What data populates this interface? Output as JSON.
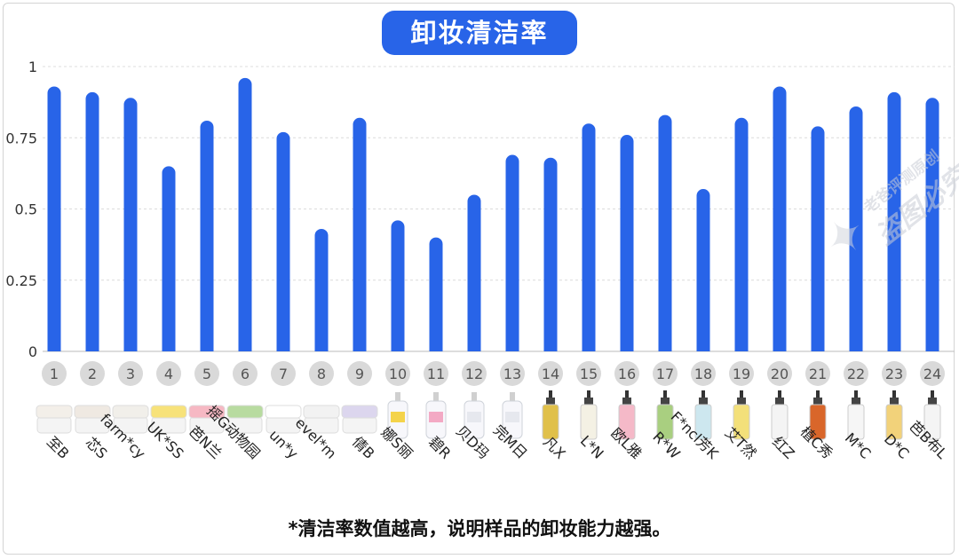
{
  "title": "卸妆清洁率",
  "footnote": "*清洁率数值越高，说明样品的卸妆能力越强。",
  "watermark": {
    "line1": "老爸评测原创",
    "line2": "盗图必究"
  },
  "colors": {
    "bar": "#2864e8",
    "title_bg": "#2864e8",
    "badge": "#d9d9d9",
    "grid": "#dcdcdc"
  },
  "chart_data": {
    "type": "bar",
    "title": "卸妆清洁率",
    "xlabel": "",
    "ylabel": "",
    "ylim": [
      0,
      1
    ],
    "yticks": [
      0,
      0.25,
      0.5,
      0.75,
      1
    ],
    "ytick_labels": [
      "0",
      "0.25",
      "0.5",
      "0.75",
      "1"
    ],
    "grid": true,
    "numbers": [
      "1",
      "2",
      "3",
      "4",
      "5",
      "6",
      "7",
      "8",
      "9",
      "10",
      "11",
      "12",
      "13",
      "14",
      "15",
      "16",
      "17",
      "18",
      "19",
      "20",
      "21",
      "22",
      "23",
      "24"
    ],
    "categories": [
      "至B",
      "芯S",
      "farm*cy",
      "UK*SS",
      "芭N兰",
      "摇G动物园",
      "un*y",
      "evel*m",
      "倩B",
      "娜S丽",
      "碧R",
      "贝D玛",
      "完M日",
      "凡X",
      "L*N",
      "欧L雅",
      "R*W",
      "F*ncl芳K",
      "艾T然",
      "红Z",
      "植C秀",
      "M*C",
      "D*C",
      "芭B布L"
    ],
    "product_types": [
      "balm",
      "balm",
      "balm",
      "balm",
      "balm",
      "balm",
      "balm",
      "balm",
      "balm",
      "water",
      "water",
      "water",
      "water",
      "oil",
      "oil",
      "oil",
      "oil",
      "oil",
      "oil",
      "oil",
      "oil",
      "oil",
      "oil",
      "oil"
    ],
    "values": [
      0.93,
      0.91,
      0.89,
      0.65,
      0.81,
      0.96,
      0.77,
      0.43,
      0.82,
      0.46,
      0.4,
      0.55,
      0.69,
      0.68,
      0.8,
      0.76,
      0.83,
      0.57,
      0.82,
      0.93,
      0.79,
      0.86,
      0.91,
      0.89
    ]
  }
}
